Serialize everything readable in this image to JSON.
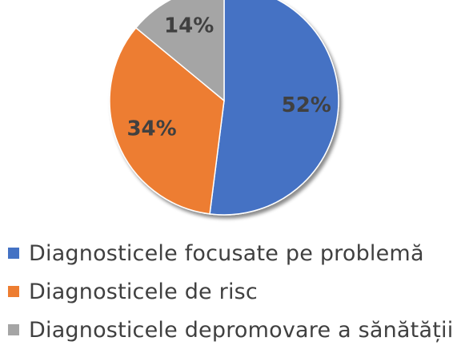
{
  "chart_data": {
    "type": "pie",
    "categories": [
      "Diagnosticele focusate pe problemă",
      "Diagnosticele de risc",
      "Diagnosticele depromovare a sănătății"
    ],
    "values": [
      52,
      34,
      14
    ],
    "data_labels": [
      "52%",
      "34%",
      "14%"
    ],
    "colors": [
      "#4472c4",
      "#ed7d31",
      "#a5a5a5"
    ],
    "legend_position": "bottom",
    "title": ""
  }
}
